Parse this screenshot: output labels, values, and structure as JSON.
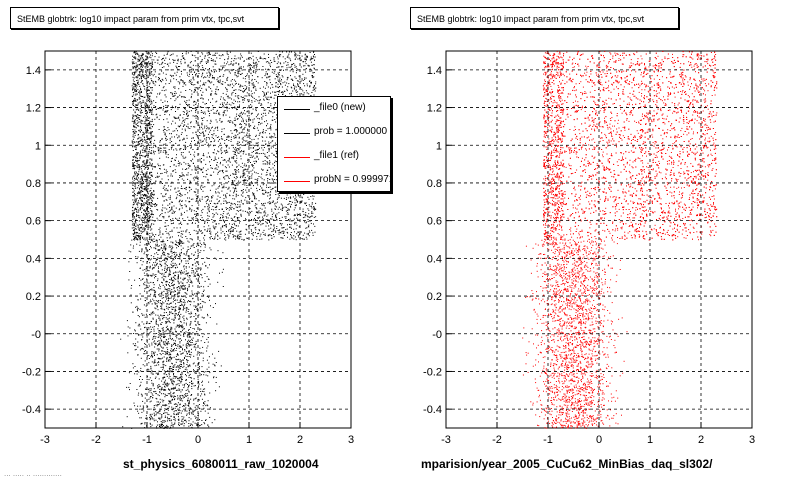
{
  "footer": "... ..... .. .............",
  "panels": [
    {
      "title": "StEMB globtrk: log10 impact param from prim vtx, tpc,svt",
      "xlabel": "st_physics_6080011_raw_1020004",
      "color": "#000000"
    },
    {
      "title": "StEMB globtrk: log10 impact param from prim vtx, tpc,svt",
      "xlabel": "mparision/year_2005_CuCu62_MinBias_daq_sl302/",
      "color": "#ff0000"
    }
  ],
  "legend": {
    "entries": [
      {
        "label": "_file0 (new)",
        "color": "#000000"
      },
      {
        "label": "prob = 1.000000",
        "color": "#000000"
      },
      {
        "label": "_file1 (ref)",
        "color": "#ff0000"
      },
      {
        "label": "probN = 0.999971",
        "color": "#ff0000"
      }
    ]
  },
  "chart_data": [
    {
      "type": "scatter",
      "title": "StEMB globtrk: log10 impact param from prim vtx, tpc,svt",
      "xlabel": "st_physics_6080011_raw_1020004",
      "ylabel": "",
      "xlim": [
        -3,
        3
      ],
      "ylim": [
        -0.5,
        1.5
      ],
      "xticks": [
        "-3",
        "-2",
        "-1",
        "0",
        "1",
        "2",
        "3"
      ],
      "yticks": [
        "-0.4",
        "-0.2",
        "-0",
        "0.2",
        "0.4",
        "0.6",
        "0.8",
        "1",
        "1.2",
        "1.4"
      ],
      "grid": true,
      "series": [
        {
          "name": "_file0 (new)",
          "color": "#000000",
          "regions": [
            {
              "x": [
                -0.9,
                2.3
              ],
              "y": [
                0.5,
                1.5
              ],
              "density": "dense"
            },
            {
              "x": [
                -2.0,
                2.3
              ],
              "y": [
                -0.5,
                0.5
              ],
              "density": "sparse"
            }
          ]
        }
      ]
    },
    {
      "type": "scatter",
      "title": "StEMB globtrk: log10 impact param from prim vtx, tpc,svt",
      "xlabel": "mparision/year_2005_CuCu62_MinBias_daq_sl302/",
      "ylabel": "",
      "xlim": [
        -3,
        3
      ],
      "ylim": [
        -0.5,
        1.5
      ],
      "xticks": [
        "-3",
        "-2",
        "-1",
        "0",
        "1",
        "2",
        "3"
      ],
      "yticks": [
        "-0.4",
        "-0.2",
        "-0",
        "0.2",
        "0.4",
        "0.6",
        "0.8",
        "1",
        "1.2",
        "1.4"
      ],
      "grid": true,
      "series": [
        {
          "name": "_file1 (ref)",
          "color": "#ff0000",
          "regions": [
            {
              "x": [
                -0.7,
                2.3
              ],
              "y": [
                0.5,
                1.5
              ],
              "density": "dense"
            },
            {
              "x": [
                -1.9,
                2.3
              ],
              "y": [
                -0.5,
                0.5
              ],
              "density": "sparse"
            }
          ]
        }
      ]
    }
  ]
}
